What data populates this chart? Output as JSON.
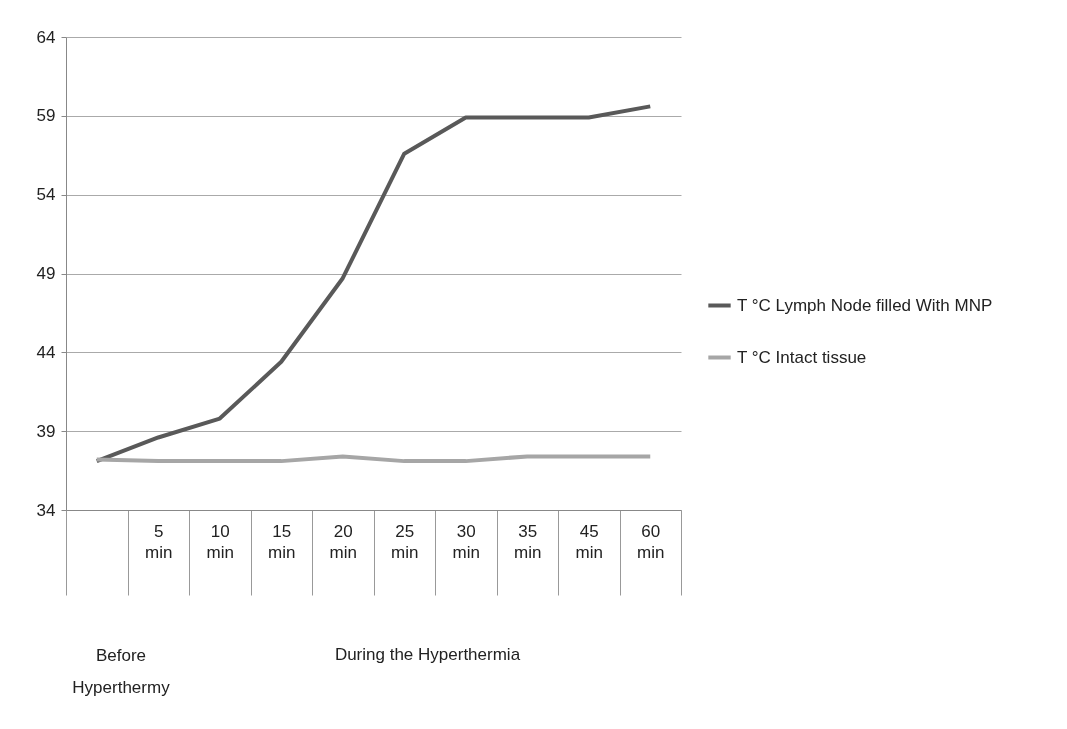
{
  "chart_data": {
    "type": "line",
    "categories": [
      null,
      "5 min",
      "10 min",
      "15 min",
      "20 min",
      "25 min",
      "30 min",
      "35 min",
      "45 min",
      "60 min"
    ],
    "series": [
      {
        "name": "T °C Lymph Node filled With MNP",
        "color": "#595959",
        "values": [
          37.1,
          38.6,
          39.8,
          43.4,
          48.7,
          56.6,
          58.9,
          58.9,
          58.9,
          59.6
        ]
      },
      {
        "name": "T °C Intact   tissue",
        "color": "#a6a6a6",
        "values": [
          37.2,
          37.1,
          37.1,
          37.1,
          37.4,
          37.1,
          37.1,
          37.4,
          37.4,
          37.4
        ]
      }
    ],
    "ylim": [
      34,
      64
    ],
    "yticks": [
      34,
      39,
      44,
      49,
      54,
      59,
      64
    ],
    "grid": "y",
    "legend": "right",
    "marker": "none",
    "line_style": "solid",
    "annotations": [
      "Before Hyperthermy",
      "During the Hyperthermia"
    ]
  }
}
